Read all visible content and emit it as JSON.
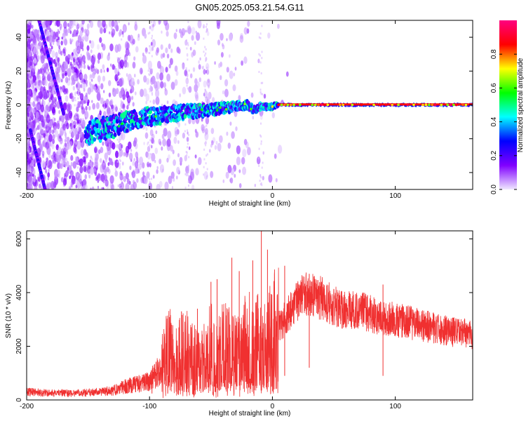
{
  "figure": {
    "title": "GN05.2025.053.21.54.G11"
  },
  "chart_data": [
    {
      "type": "heatmap",
      "title": "GN05.2025.053.21.54.G11",
      "xlabel": "Height of straight line (km)",
      "ylabel": "Frequency (Hz)",
      "xlim": [
        -200,
        163
      ],
      "ylim": [
        -50,
        50
      ],
      "x_ticks": [
        -200,
        -100,
        0,
        100
      ],
      "y_ticks": [
        -40,
        -20,
        0,
        20,
        40
      ],
      "grid": false,
      "colorbar": {
        "label": "Normalized spectral amplitude",
        "range": [
          0,
          1
        ],
        "ticks": [
          0,
          0.2,
          0.4,
          0.6,
          0.8
        ],
        "tick_labels": [
          "0.0",
          "0.2",
          "0.4",
          "0.6",
          "0.8"
        ],
        "colormap": [
          "#f0e8ff",
          "#8000ff",
          "#0000ff",
          "#00ffff",
          "#00ff00",
          "#ffff00",
          "#ff0000",
          "#ff0080"
        ]
      },
      "signal_trace": [
        {
          "x": -150,
          "y": -16
        },
        {
          "x": -130,
          "y": -13
        },
        {
          "x": -110,
          "y": -8
        },
        {
          "x": -90,
          "y": -6
        },
        {
          "x": -70,
          "y": -4
        },
        {
          "x": -50,
          "y": -3
        },
        {
          "x": -30,
          "y": -1
        },
        {
          "x": -20,
          "y": 0
        },
        {
          "x": -15,
          "y": -3
        },
        {
          "x": -10,
          "y": -1
        },
        {
          "x": 0,
          "y": -1
        },
        {
          "x": 5,
          "y": 0
        },
        {
          "x": 100,
          "y": 0
        },
        {
          "x": 163,
          "y": 0
        }
      ],
      "aliased_traces": [
        {
          "start": {
            "x": -197,
            "y": -15
          },
          "end": {
            "x": -185,
            "y": -50
          }
        },
        {
          "start": {
            "x": -190,
            "y": 50
          },
          "end": {
            "x": -170,
            "y": -5
          }
        }
      ]
    },
    {
      "type": "line",
      "xlabel": "Height of straight line (km)",
      "ylabel": "SNR (10 * v/v)",
      "xlim": [
        -200,
        163
      ],
      "ylim": [
        0,
        6300
      ],
      "x_ticks": [
        -200,
        -100,
        0,
        100
      ],
      "y_ticks": [
        0,
        2000,
        4000,
        6000
      ],
      "grid": false,
      "color": "#f03030",
      "series": [
        {
          "x": [
            -200,
            -180,
            -160,
            -140,
            -130,
            -120,
            -110,
            -100,
            -90,
            -85,
            -80,
            -70,
            -60,
            -50,
            -45,
            -40,
            -30,
            -20,
            -15,
            -10,
            -5,
            0,
            10,
            20,
            25,
            30,
            40,
            50,
            60,
            70,
            80,
            90,
            100,
            110,
            120,
            130,
            140,
            150,
            160,
            163
          ],
          "y": [
            300,
            250,
            250,
            300,
            350,
            500,
            600,
            700,
            1200,
            2000,
            1400,
            1800,
            1300,
            1900,
            1500,
            2000,
            1600,
            2200,
            1700,
            2300,
            2000,
            2400,
            3000,
            3700,
            3900,
            4000,
            3800,
            3500,
            3300,
            3400,
            3200,
            3000,
            3000,
            2900,
            2800,
            2700,
            2600,
            2500,
            2500,
            2300
          ]
        }
      ],
      "spikes": [
        {
          "x": -98,
          "y": 1100
        },
        {
          "x": -82,
          "y": 2800
        },
        {
          "x": -74,
          "y": 3300
        },
        {
          "x": -61,
          "y": 3400
        },
        {
          "x": -50,
          "y": 4400
        },
        {
          "x": -45,
          "y": 4500
        },
        {
          "x": -33,
          "y": 5300
        },
        {
          "x": -27,
          "y": 4800
        },
        {
          "x": -16,
          "y": 5200
        },
        {
          "x": -9,
          "y": 6300
        },
        {
          "x": -4,
          "y": 5600
        },
        {
          "x": 10,
          "y": 5000
        },
        {
          "x": 30,
          "y": 4700
        },
        {
          "x": 90,
          "y": 4300
        }
      ]
    }
  ]
}
